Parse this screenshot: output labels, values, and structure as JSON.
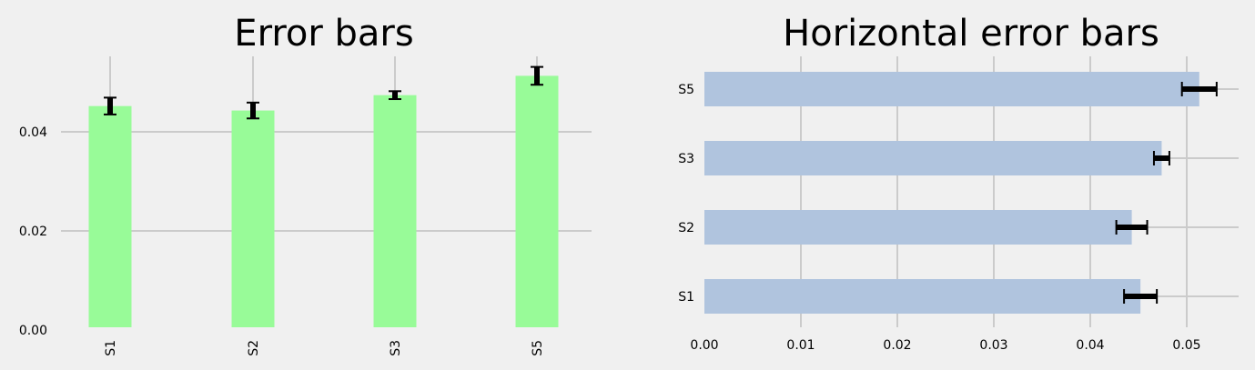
{
  "chart_data": [
    {
      "type": "bar",
      "orientation": "vertical",
      "title": "Error bars",
      "categories": [
        "S1",
        "S2",
        "S3",
        "S5"
      ],
      "values": [
        0.0452,
        0.0443,
        0.0474,
        0.0513
      ],
      "errors": [
        0.0017,
        0.0016,
        0.0008,
        0.0018
      ],
      "ylim": [
        0,
        0.055
      ],
      "yticks": [
        "0.00",
        "0.02",
        "0.04"
      ],
      "ytick_values": [
        0,
        0.02,
        0.04
      ],
      "bar_color": "#98fb98",
      "grid": true
    },
    {
      "type": "bar",
      "orientation": "horizontal",
      "title": "Horizontal error bars",
      "categories": [
        "S1",
        "S2",
        "S3",
        "S5"
      ],
      "values": [
        0.0452,
        0.0443,
        0.0474,
        0.0513
      ],
      "errors": [
        0.0017,
        0.0016,
        0.0008,
        0.0018
      ],
      "xlim": [
        0,
        0.055
      ],
      "xticks": [
        "0.00",
        "0.01",
        "0.02",
        "0.03",
        "0.04",
        "0.05"
      ],
      "xtick_values": [
        0,
        0.01,
        0.02,
        0.03,
        0.04,
        0.05
      ],
      "bar_color": "#b0c4de",
      "grid": true
    }
  ]
}
